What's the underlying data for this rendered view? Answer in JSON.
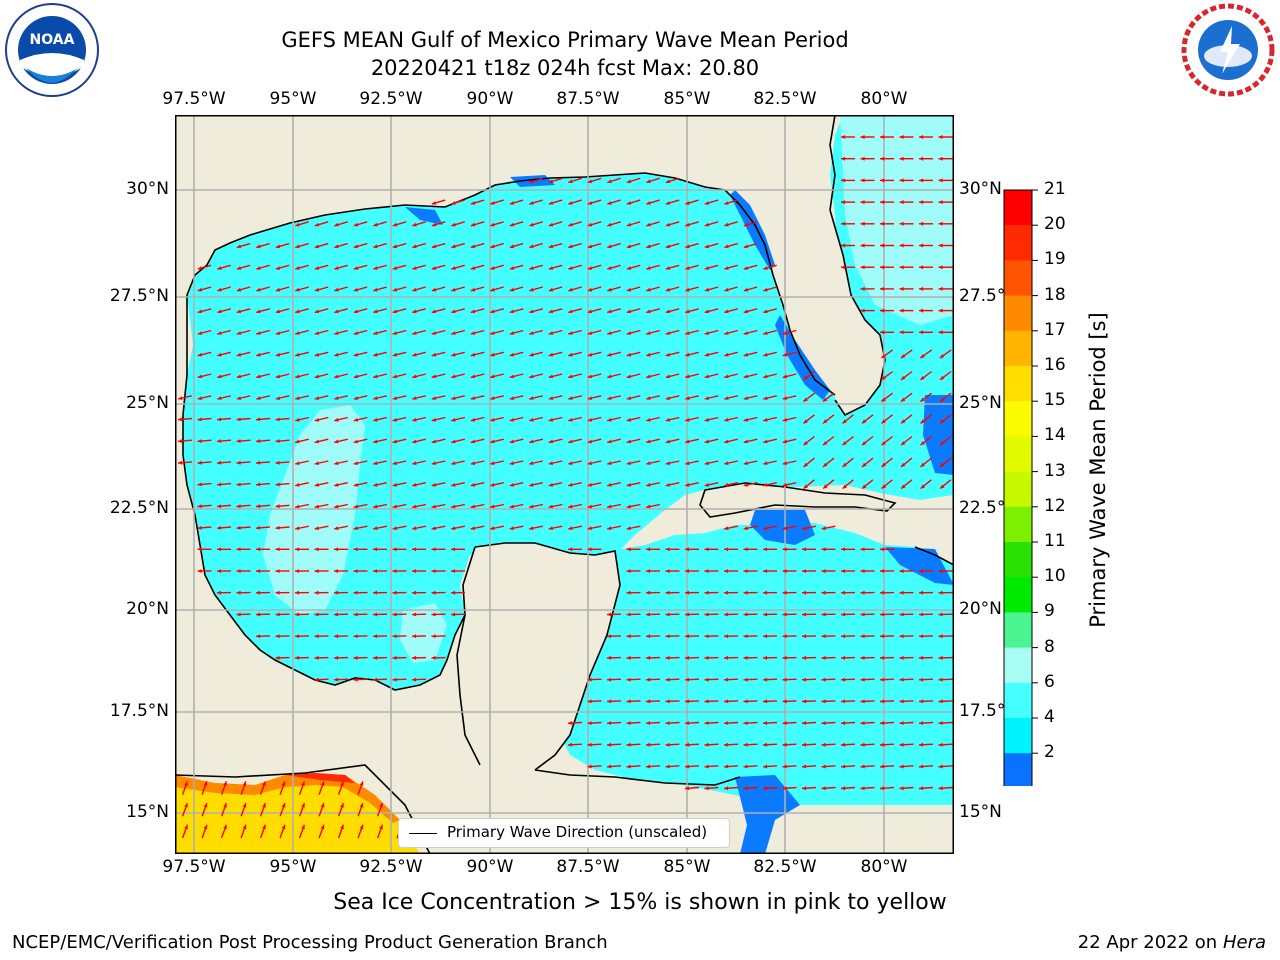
{
  "header": {
    "title_line1": "GEFS MEAN Gulf of Mexico Primary Wave Mean Period",
    "title_line2": "20220421 t18z 024h fcst   Max: 20.80",
    "left_logo_text": "NOAA",
    "right_logo_text": "NATIONAL WEATHER SERVICE"
  },
  "map": {
    "lon_labels": [
      "97.5°W",
      "95°W",
      "92.5°W",
      "90°W",
      "87.5°W",
      "85°W",
      "82.5°W",
      "80°W"
    ],
    "lat_labels": [
      "30°N",
      "27.5°N",
      "25°N",
      "22.5°N",
      "20°N",
      "17.5°N",
      "15°N"
    ],
    "legend_label": "Primary Wave Direction (unscaled)",
    "colors": {
      "land": "#efecdc",
      "ocean_4_6": "#00ffff",
      "ocean_6_8": "#44ffff",
      "ocean_8_9": "#9ffcf8",
      "ocean_2_4": "#0a7bff",
      "arrow": "#ff0000",
      "grid": "#b0b0b0",
      "coast": "#000000"
    }
  },
  "colorbar": {
    "title": "Primary Wave Mean Period [s]",
    "ticks": [
      "21",
      "20",
      "19",
      "18",
      "17",
      "16",
      "15",
      "14",
      "13",
      "12",
      "11",
      "10",
      "9",
      "8",
      "6",
      "4",
      "2"
    ],
    "bands": [
      {
        "from": 20,
        "to": 21,
        "color": "#ff0000"
      },
      {
        "from": 19,
        "to": 20,
        "color": "#ff2a00"
      },
      {
        "from": 18,
        "to": 19,
        "color": "#ff5500"
      },
      {
        "from": 17,
        "to": 18,
        "color": "#ff8a00"
      },
      {
        "from": 16,
        "to": 17,
        "color": "#ffb400"
      },
      {
        "from": 15,
        "to": 16,
        "color": "#ffdd00"
      },
      {
        "from": 14,
        "to": 15,
        "color": "#fbfb00"
      },
      {
        "from": 13,
        "to": 14,
        "color": "#e2fb00"
      },
      {
        "from": 12,
        "to": 13,
        "color": "#c6f800"
      },
      {
        "from": 11,
        "to": 12,
        "color": "#7fef00"
      },
      {
        "from": 10,
        "to": 11,
        "color": "#28e100"
      },
      {
        "from": 9,
        "to": 10,
        "color": "#00ea00"
      },
      {
        "from": 8,
        "to": 9,
        "color": "#4cf591"
      },
      {
        "from": 6,
        "to": 8,
        "color": "#a8fdf4"
      },
      {
        "from": 4,
        "to": 6,
        "color": "#45ffff"
      },
      {
        "from": 2,
        "to": 4,
        "color": "#00f3ff"
      },
      {
        "from": 0,
        "to": 2,
        "color": "#0a72ff"
      }
    ],
    "extend_color": "#0000ff"
  },
  "footer": {
    "sea_ice_note": "Sea Ice Concentration > 15% is shown in pink to yellow",
    "branch": "NCEP/EMC/Verification Post Processing Product Generation Branch",
    "date_prefix": "22 Apr 2022 on ",
    "machine": "Hera"
  }
}
